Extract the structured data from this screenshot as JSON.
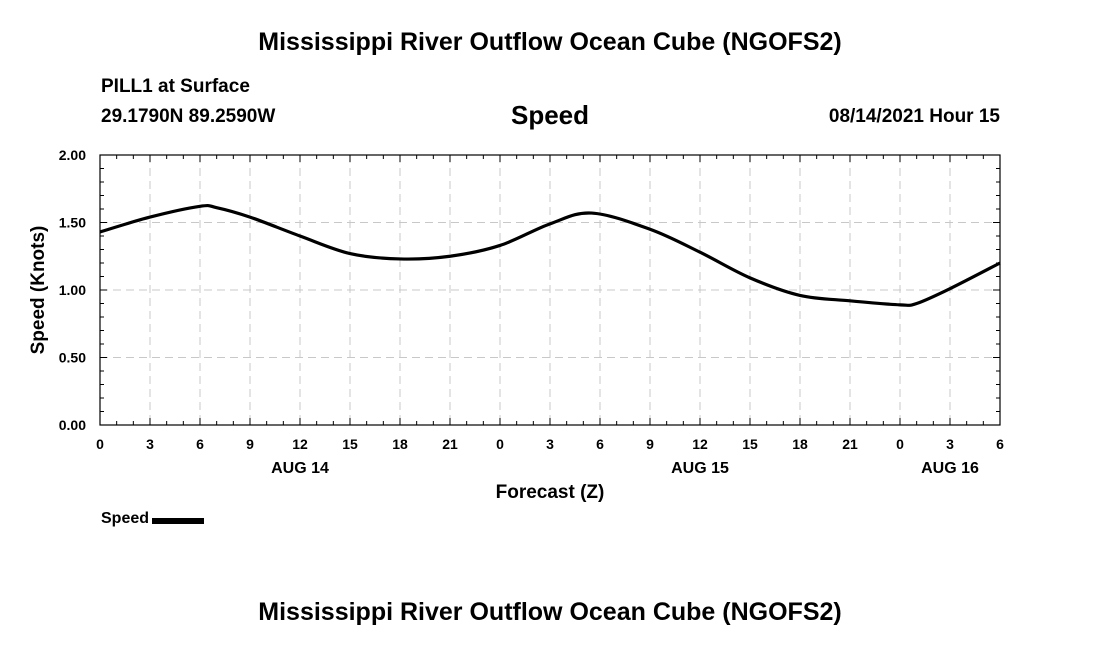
{
  "header": {
    "title_top": "Mississippi River Outflow Ocean Cube (NGOFS2)",
    "station": "PILL1 at Surface",
    "coords": "29.1790N  89.2590W",
    "variable": "Speed",
    "datetime": "08/14/2021 Hour 15"
  },
  "footer": {
    "title_bottom": "Mississippi River Outflow Ocean Cube (NGOFS2)"
  },
  "legend": {
    "label": "Speed",
    "color": "#000000"
  },
  "chart_data": {
    "type": "line",
    "title": "Speed",
    "xlabel": "Forecast (Z)",
    "ylabel": "Speed (Knots)",
    "xlim": [
      0,
      54
    ],
    "ylim": [
      0,
      2
    ],
    "x_ticks": [
      0,
      3,
      6,
      9,
      12,
      15,
      18,
      21,
      24,
      27,
      30,
      33,
      36,
      39,
      42,
      45,
      48,
      51,
      54
    ],
    "x_tick_labels": [
      "0",
      "3",
      "6",
      "9",
      "12",
      "15",
      "18",
      "21",
      "0",
      "3",
      "6",
      "9",
      "12",
      "15",
      "18",
      "21",
      "0",
      "3",
      "6"
    ],
    "y_ticks": [
      0,
      0.5,
      1.0,
      1.5,
      2.0
    ],
    "y_tick_labels": [
      "0.00",
      "0.50",
      "1.00",
      "1.50",
      "2.00"
    ],
    "date_labels": [
      {
        "x": 12,
        "label": "AUG 14"
      },
      {
        "x": 36,
        "label": "AUG 15"
      },
      {
        "x": 51,
        "label": "AUG 16"
      }
    ],
    "grid": true,
    "series": [
      {
        "name": "Speed",
        "color": "#000000",
        "x": [
          0,
          3,
          6,
          7,
          9,
          12,
          15,
          18,
          21,
          24,
          27,
          29.5,
          33,
          36,
          39,
          42,
          45,
          48,
          49,
          51,
          54
        ],
        "y": [
          1.43,
          1.54,
          1.62,
          1.61,
          1.54,
          1.4,
          1.27,
          1.23,
          1.25,
          1.33,
          1.49,
          1.57,
          1.45,
          1.28,
          1.09,
          0.96,
          0.92,
          0.89,
          0.9,
          1.01,
          1.2
        ]
      }
    ]
  }
}
